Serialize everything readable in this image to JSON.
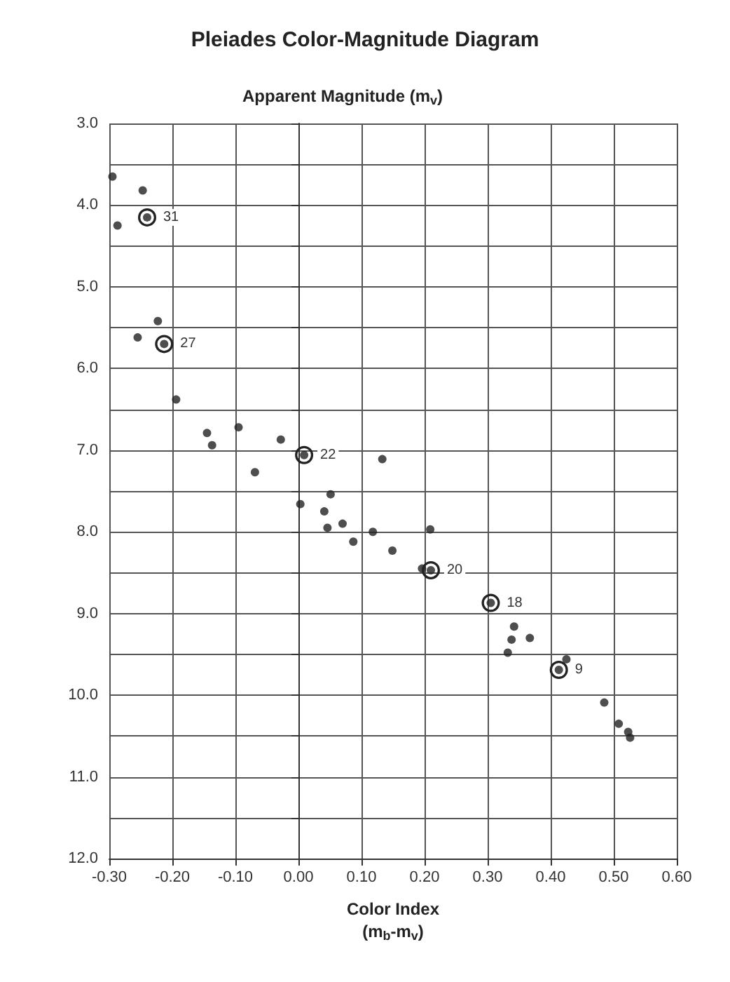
{
  "chart_data": {
    "type": "scatter",
    "title": "Pleiades Color-Magnitude Diagram",
    "xlabel": "Color Index\n(m$_{b}$-m$_{v}$)",
    "ylabel": "Apparent Magnitude (m$_{v}$)",
    "x": [
      -0.295,
      -0.287,
      -0.247,
      -0.24,
      -0.255,
      -0.223,
      -0.213,
      -0.194,
      -0.145,
      -0.137,
      -0.095,
      -0.069,
      -0.028,
      0.009,
      0.003,
      0.041,
      0.051,
      0.046,
      0.07,
      0.087,
      0.118,
      0.133,
      0.149,
      0.196,
      0.21,
      0.209,
      0.305,
      0.332,
      0.338,
      0.342,
      0.367,
      0.413,
      0.425,
      0.485,
      0.508,
      0.523,
      0.526
    ],
    "values": [
      3.65,
      4.25,
      3.82,
      4.15,
      5.62,
      5.42,
      5.7,
      6.38,
      6.79,
      6.94,
      6.72,
      7.27,
      6.87,
      7.06,
      7.66,
      7.75,
      7.54,
      7.95,
      7.9,
      8.12,
      8.0,
      7.11,
      8.23,
      8.45,
      8.47,
      7.97,
      8.87,
      9.48,
      9.32,
      9.16,
      9.3,
      9.69,
      9.56,
      10.09,
      10.35,
      10.45,
      10.52
    ],
    "color": "#222222",
    "marker": "circle",
    "grid": true,
    "xlim": [
      -0.3,
      0.6
    ],
    "xticks": [
      {
        "value": -0.3,
        "label": "-0.30"
      },
      {
        "value": -0.2,
        "label": "-0.20"
      },
      {
        "value": -0.1,
        "label": "-0.10"
      },
      {
        "value": 0,
        "label": "0.00"
      },
      {
        "value": 0.1,
        "label": "0.10"
      },
      {
        "value": 0.2,
        "label": "0.20"
      },
      {
        "value": 0.3,
        "label": "0.30"
      },
      {
        "value": 0.4,
        "label": "0.40"
      },
      {
        "value": 0.5,
        "label": "0.50"
      },
      {
        "value": 0.6,
        "label": "0.60"
      }
    ],
    "ylim": [
      12,
      3
    ],
    "yticks": [
      {
        "value": 3,
        "label": "3.0"
      },
      {
        "value": 3.5,
        "label": null
      },
      {
        "value": 4,
        "label": "4.0"
      },
      {
        "value": 4.5,
        "label": null
      },
      {
        "value": 5,
        "label": "5.0"
      },
      {
        "value": 5.5,
        "label": null
      },
      {
        "value": 6,
        "label": "6.0"
      },
      {
        "value": 6.5,
        "label": null
      },
      {
        "value": 7,
        "label": "7.0"
      },
      {
        "value": 7.5,
        "label": null
      },
      {
        "value": 8,
        "label": "8.0"
      },
      {
        "value": 8.5,
        "label": null
      },
      {
        "value": 9,
        "label": "9.0"
      },
      {
        "value": 9.5,
        "label": null
      },
      {
        "value": 10,
        "label": "10.0"
      },
      {
        "value": 10.5,
        "label": null
      },
      {
        "value": 11,
        "label": "11.0"
      },
      {
        "value": 11.5,
        "label": null
      },
      {
        "value": 12,
        "label": "12.0"
      }
    ],
    "annotations": [
      {
        "text": "31",
        "x": -0.24,
        "y": 4.15
      },
      {
        "text": "27",
        "x": -0.213,
        "y": 5.7
      },
      {
        "text": "22",
        "x": 0.009,
        "y": 7.06
      },
      {
        "text": "20",
        "x": 0.21,
        "y": 8.47
      },
      {
        "text": "18",
        "x": 0.305,
        "y": 8.87
      },
      {
        "text": "9",
        "x": 0.413,
        "y": 9.69
      }
    ]
  }
}
